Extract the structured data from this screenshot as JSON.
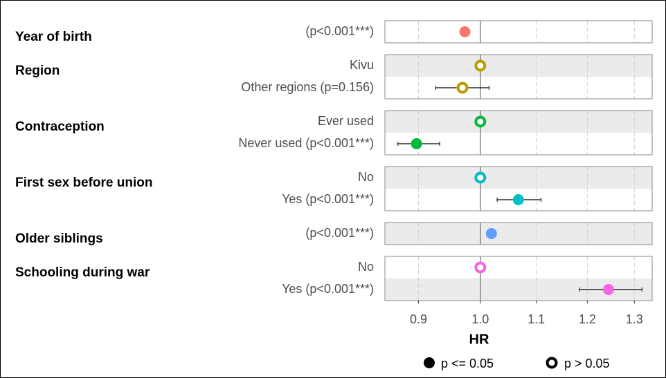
{
  "chart_data": {
    "type": "forest",
    "xlabel": "HR",
    "log_x": true,
    "xlim": [
      0.85,
      1.34
    ],
    "xticks": [
      {
        "value": 0.9,
        "label": "0.9"
      },
      {
        "value": 1,
        "label": "1.0"
      },
      {
        "value": 1.1,
        "label": "1.1"
      },
      {
        "value": 1.2,
        "label": "1.2"
      },
      {
        "value": 1.3,
        "label": "1.3"
      }
    ],
    "reference_line": 1,
    "grid": true,
    "legend": [
      "p <= 0.05",
      "p > 0.05"
    ],
    "groups": [
      {
        "name": "Year of birth",
        "color": "#f8766d",
        "rows": [
          {
            "label": "(p<0.001***)",
            "hr": 0.974,
            "significant": true,
            "shade": false
          }
        ]
      },
      {
        "name": "Region",
        "color": "#b79f00",
        "rows": [
          {
            "label": "Kivu",
            "hr": 1,
            "significant": false,
            "shade": true
          },
          {
            "label": "Other regions (p=0.156)",
            "hr": 0.97,
            "lo": 0.927,
            "hi": 1.015,
            "significant": false,
            "shade": false
          }
        ]
      },
      {
        "name": "Contraception",
        "color": "#00ba38",
        "rows": [
          {
            "label": "Ever used",
            "hr": 1,
            "significant": false,
            "shade": true
          },
          {
            "label": "Never used (p<0.001***)",
            "hr": 0.897,
            "lo": 0.869,
            "hi": 0.933,
            "significant": true,
            "shade": false
          }
        ]
      },
      {
        "name": "First sex before union",
        "color": "#00bfc4",
        "rows": [
          {
            "label": "No",
            "hr": 1,
            "significant": false,
            "shade": true
          },
          {
            "label": "Yes (p<0.001***)",
            "hr": 1.067,
            "lo": 1.029,
            "hi": 1.109,
            "significant": true,
            "shade": false
          }
        ]
      },
      {
        "name": "Older siblings",
        "color": "#619cff",
        "rows": [
          {
            "label": "(p<0.001***)",
            "hr": 1.019,
            "significant": true,
            "shade": true
          }
        ]
      },
      {
        "name": "Schooling during war",
        "color": "#f564e3",
        "rows": [
          {
            "label": "No",
            "hr": 1,
            "significant": false,
            "shade": false
          },
          {
            "label": "Yes (p<0.001***)",
            "hr": 1.244,
            "lo": 1.184,
            "hi": 1.317,
            "significant": true,
            "shade": true
          }
        ]
      }
    ]
  }
}
